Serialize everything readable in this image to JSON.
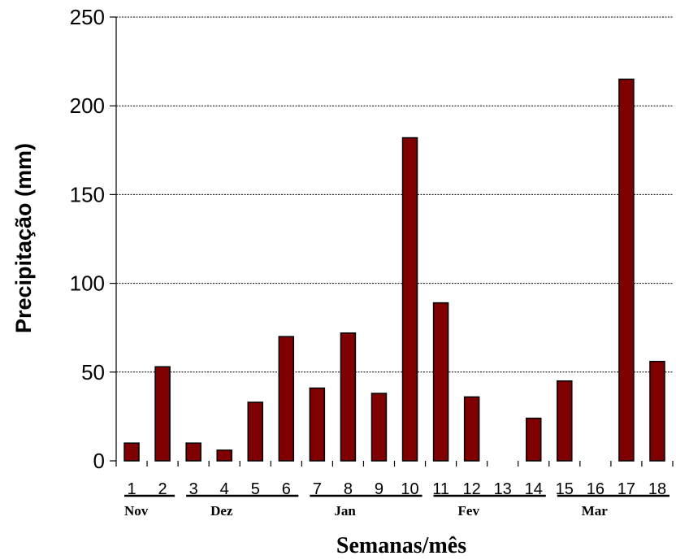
{
  "chart_data": {
    "type": "bar",
    "categories": [
      "1",
      "2",
      "3",
      "4",
      "5",
      "6",
      "7",
      "8",
      "9",
      "10",
      "11",
      "12",
      "13",
      "14",
      "15",
      "16",
      "17",
      "18"
    ],
    "values": [
      10,
      53,
      10,
      6,
      33,
      70,
      41,
      72,
      38,
      182,
      89,
      36,
      0,
      24,
      45,
      0,
      215,
      56
    ],
    "ylabel": "Precipitação (mm)",
    "xlabel": "Semanas/mês",
    "ylim": [
      0,
      250
    ],
    "yticks": [
      0,
      50,
      100,
      150,
      200,
      250
    ],
    "grid": "horizontal dashed",
    "bar_color": "#7f0000",
    "months": [
      {
        "label": "Nov",
        "weeks": [
          1,
          2
        ]
      },
      {
        "label": "Dez",
        "weeks": [
          3,
          6
        ]
      },
      {
        "label": "Jan",
        "weeks": [
          7,
          10
        ]
      },
      {
        "label": "Fev",
        "weeks": [
          11,
          14
        ]
      },
      {
        "label": "Mar",
        "weeks": [
          15,
          18
        ]
      }
    ]
  }
}
